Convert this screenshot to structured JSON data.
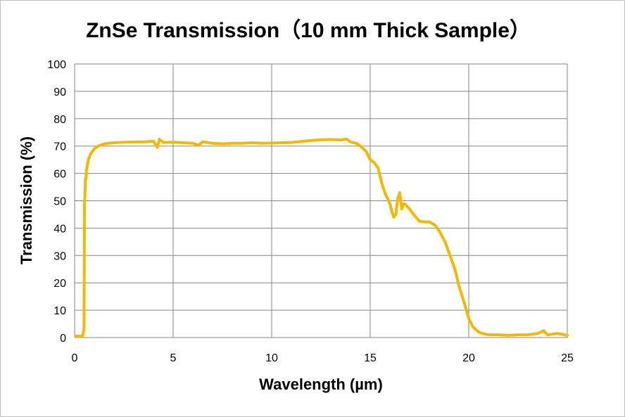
{
  "chart_data": {
    "type": "line",
    "title": "ZnSe Transmission（10 mm Thick Sample）",
    "xlabel": "Wavelength (µm)",
    "ylabel": "Transmission (%)",
    "xlim": [
      0,
      25
    ],
    "ylim": [
      0,
      100
    ],
    "x_ticks": [
      "0",
      "5",
      "10",
      "15",
      "20",
      "25"
    ],
    "y_ticks": [
      "0",
      "10",
      "20",
      "30",
      "40",
      "50",
      "60",
      "70",
      "80",
      "90",
      "100"
    ],
    "grid": true,
    "legend": "none",
    "series_color": "#F5B800",
    "series": [
      {
        "x": [
          0.05,
          0.4,
          0.45,
          0.48,
          0.5,
          0.52,
          0.55,
          0.58,
          0.6,
          0.65,
          0.7,
          0.8,
          0.9,
          1.0,
          1.2,
          1.5,
          2.0,
          2.5,
          3.0,
          3.5,
          4.0,
          4.2,
          4.3,
          4.5,
          5.0,
          5.5,
          6.0,
          6.3,
          6.5,
          7.0,
          7.5,
          8.0,
          8.5,
          9.0,
          9.5,
          10.0,
          10.5,
          11.0,
          11.5,
          12.0,
          12.5,
          13.0,
          13.5,
          13.8,
          14.0,
          14.3,
          14.5,
          14.8,
          15.0,
          15.2,
          15.4,
          15.6,
          15.8,
          16.0,
          16.1,
          16.2,
          16.3,
          16.4,
          16.5,
          16.6,
          16.7,
          16.8,
          17.0,
          17.2,
          17.5,
          17.8,
          18.0,
          18.3,
          18.5,
          18.8,
          19.0,
          19.3,
          19.5,
          19.8,
          20.0,
          20.2,
          20.5,
          20.7,
          21.0,
          21.5,
          22.0,
          22.5,
          23.0,
          23.5,
          23.8,
          24.0,
          24.5,
          25.0
        ],
        "y": [
          0.5,
          0.5,
          2,
          3.5,
          50,
          51,
          58,
          58,
          61,
          63,
          65,
          67,
          68,
          69,
          70,
          70.8,
          71.2,
          71.4,
          71.5,
          71.5,
          71.8,
          69.5,
          72.5,
          71.3,
          71.4,
          71.2,
          71,
          70.3,
          71.6,
          71,
          70.8,
          71,
          71,
          71.2,
          71,
          71.1,
          71.2,
          71.3,
          71.7,
          72,
          72.3,
          72.4,
          72.2,
          72.6,
          71.5,
          71,
          70,
          68,
          65,
          64,
          62,
          56,
          52,
          49,
          46,
          44,
          45,
          51,
          53,
          47,
          49,
          48.5,
          47,
          45,
          42.5,
          42.2,
          42.3,
          41,
          39,
          35,
          31,
          25,
          19,
          12,
          7,
          4,
          2,
          1.5,
          1,
          1,
          0.8,
          1,
          1,
          1.5,
          2.5,
          1,
          1.5,
          0.8
        ]
      }
    ]
  }
}
